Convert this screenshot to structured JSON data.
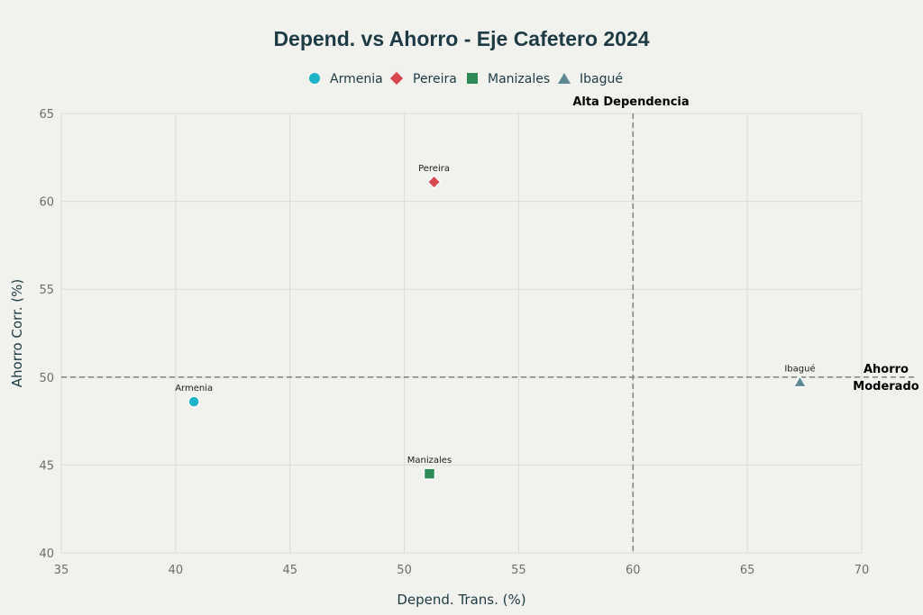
{
  "chart_data": {
    "type": "scatter",
    "title": "Depend. vs Ahorro - Eje Cafetero 2024",
    "xlabel": "Depend. Trans. (%)",
    "ylabel": "Ahorro Corr. (%)",
    "xlim": [
      35,
      70
    ],
    "ylim": [
      40,
      65
    ],
    "x_ticks": [
      35,
      40,
      45,
      50,
      55,
      60,
      65,
      70
    ],
    "y_ticks": [
      40,
      45,
      50,
      55,
      60,
      65
    ],
    "grid": true,
    "legend_position": "top-center",
    "series": [
      {
        "name": "Armenia",
        "marker": "circle",
        "color": "#1fb3c9",
        "x": 40.8,
        "y": 48.6,
        "label": "Armenia"
      },
      {
        "name": "Pereira",
        "marker": "diamond",
        "color": "#d9474f",
        "x": 51.3,
        "y": 61.1,
        "label": "Pereira"
      },
      {
        "name": "Manizales",
        "marker": "square",
        "color": "#2e8b57",
        "x": 51.1,
        "y": 44.5,
        "label": "Manizales"
      },
      {
        "name": "Ibagué",
        "marker": "triangle-up",
        "color": "#5e8993",
        "x": 67.3,
        "y": 49.7,
        "label": "Ibagué"
      }
    ],
    "reference_lines": [
      {
        "orientation": "vertical",
        "value": 60,
        "label": "Alta Dependencia"
      },
      {
        "orientation": "horizontal",
        "value": 50,
        "label_lines": [
          "Ahorro",
          "Moderado"
        ]
      }
    ]
  },
  "colors": {
    "background": "#f1f2ed",
    "grid": "#dcdcd6",
    "title": "#1e3a44",
    "tick": "#6b6e6f",
    "reference_line": "#888888"
  }
}
